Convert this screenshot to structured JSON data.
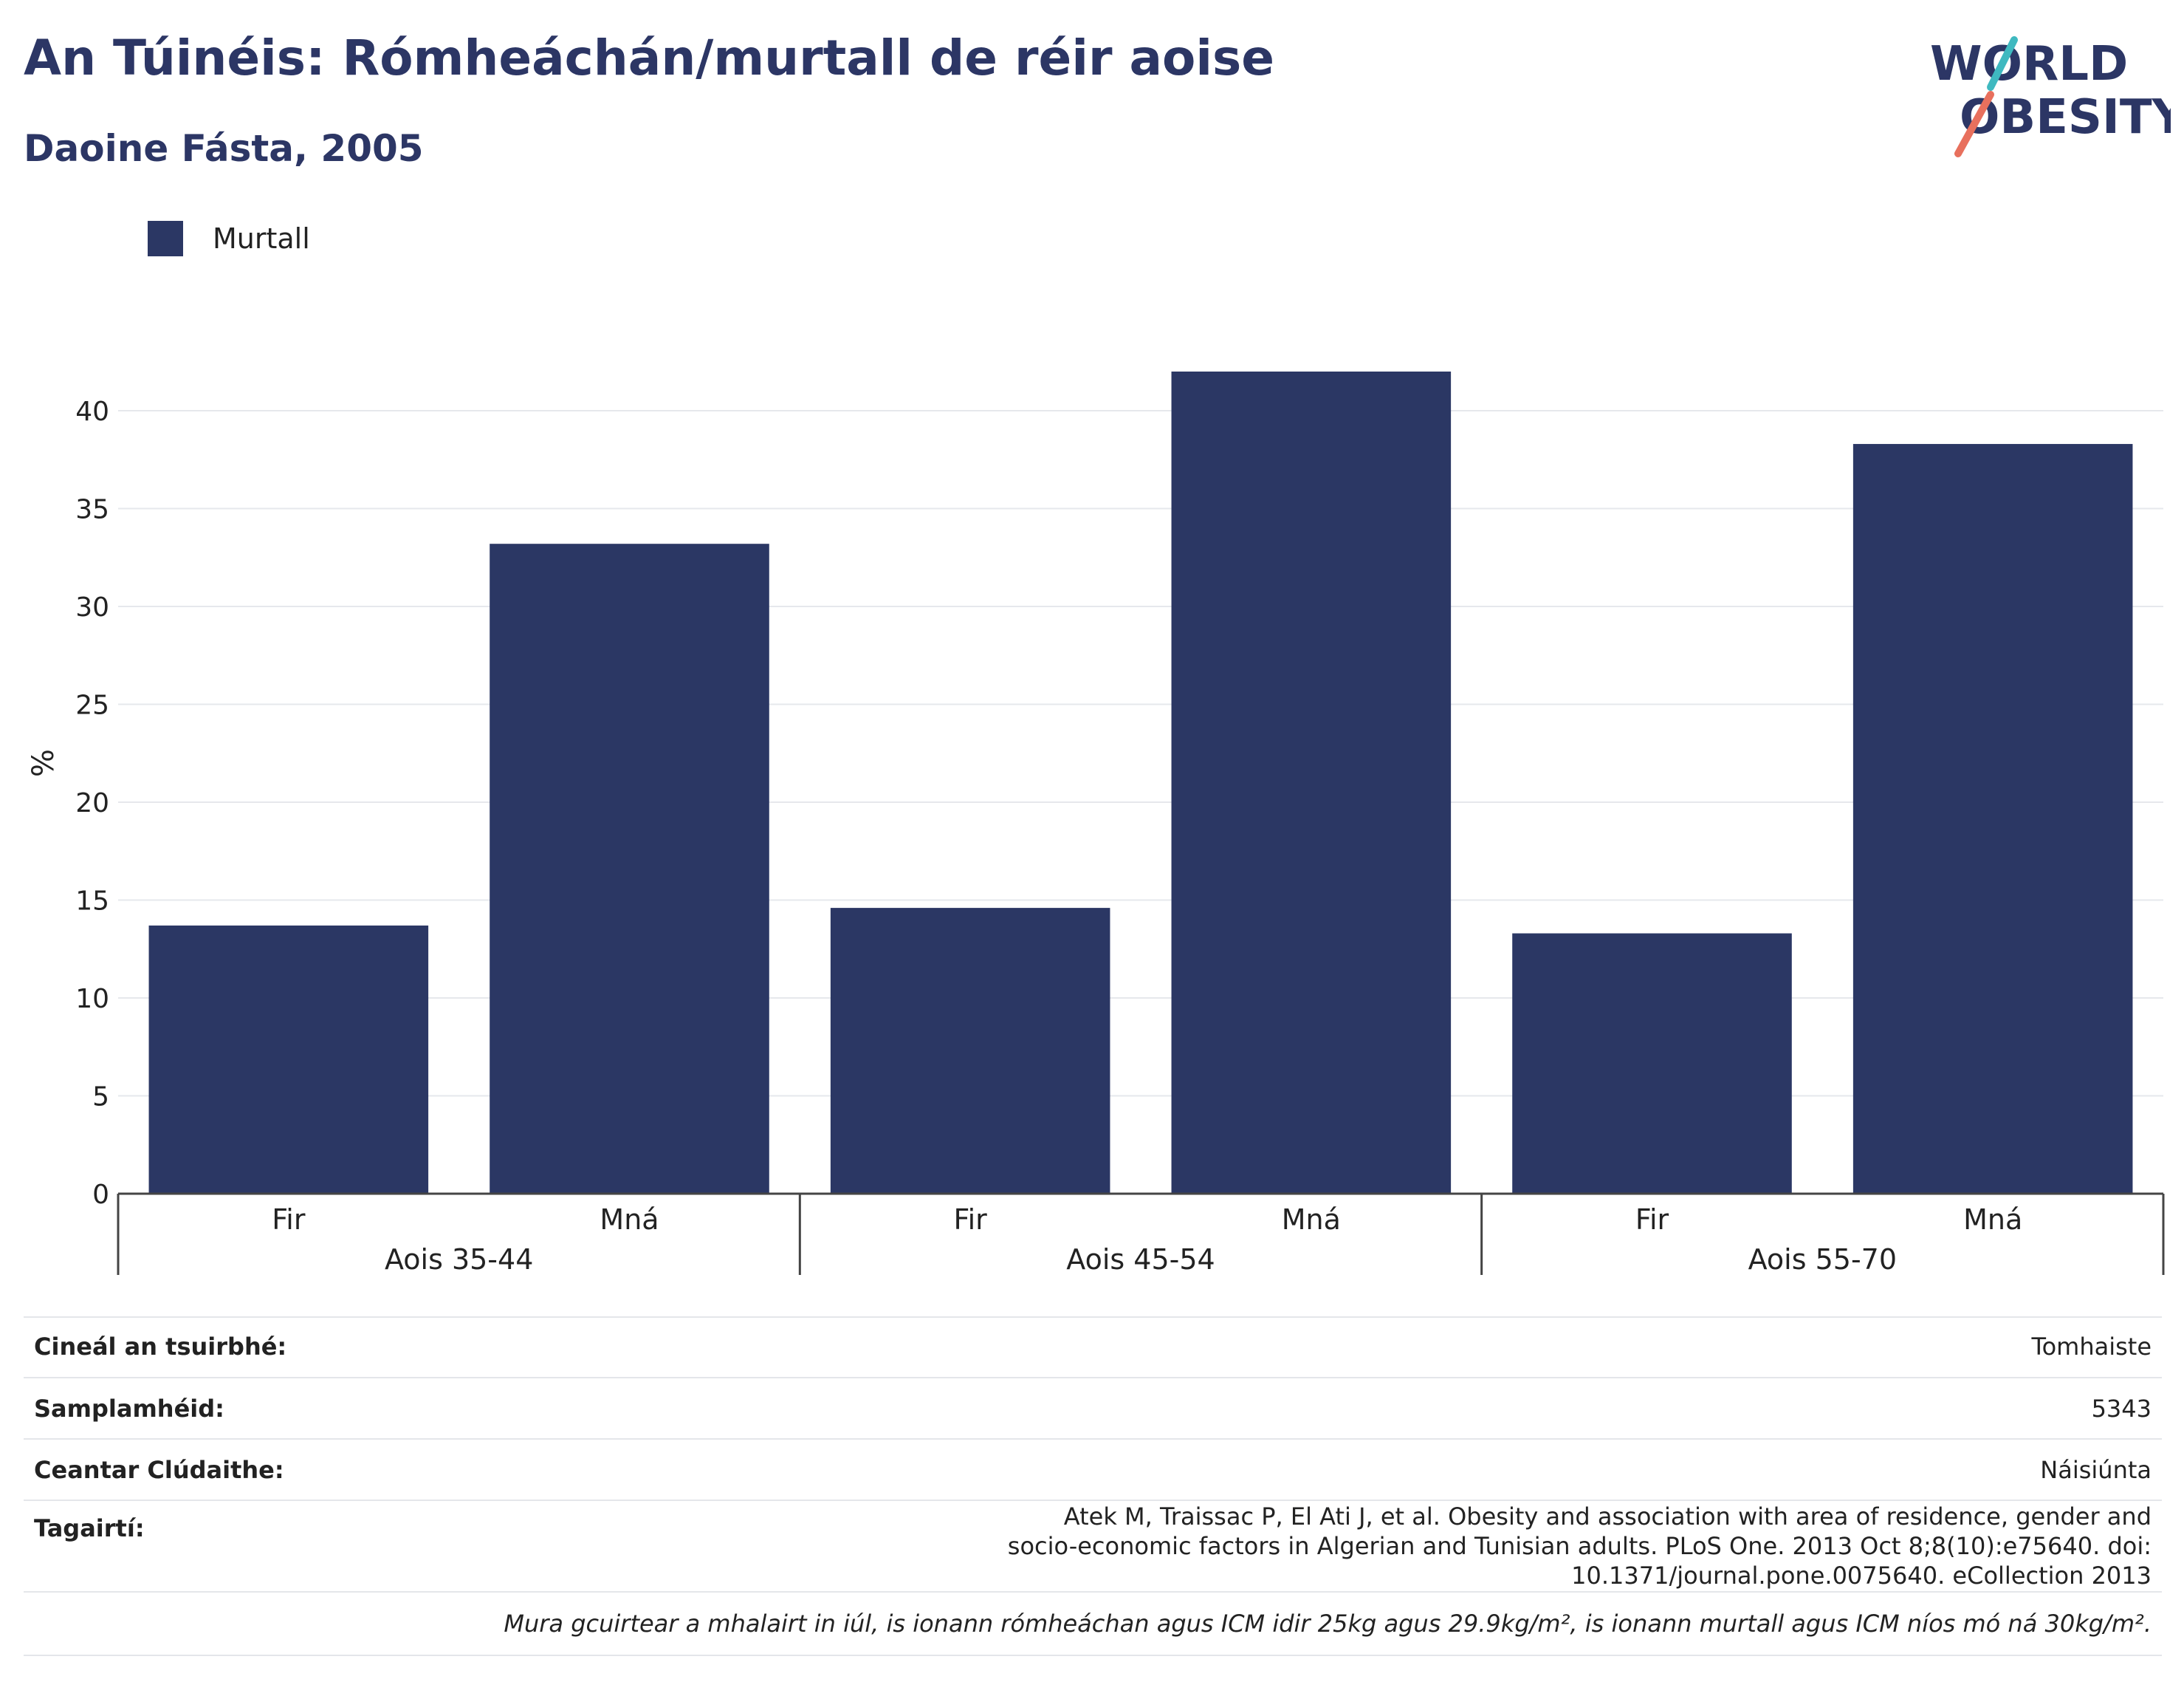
{
  "header": {
    "title": "An Túinéis: Rómheáchán/murtall de réir aoise",
    "subtitle": "Daoine Fásta, 2005"
  },
  "logo": {
    "line1": "WORLD",
    "line2": "OBESITY",
    "text_color": "#2c3665",
    "accent_teal": "#3fb9c0",
    "accent_coral": "#e8705d"
  },
  "legend": {
    "label": "Murtall",
    "color": "#2b3764"
  },
  "chart_data": {
    "type": "bar",
    "ylabel": "%",
    "ylim": [
      0,
      44
    ],
    "yticks": [
      0,
      5,
      10,
      15,
      20,
      25,
      30,
      35,
      40
    ],
    "grid": true,
    "legend_position": "top-left",
    "groups": [
      "Aois 35-44",
      "Aois 45-54",
      "Aois 55-70"
    ],
    "subcategories": [
      "Fir",
      "Mná"
    ],
    "series": [
      {
        "name": "Murtall",
        "color": "#2b3764",
        "values": [
          [
            13.7,
            33.2
          ],
          [
            14.6,
            42.0
          ],
          [
            13.3,
            38.3
          ]
        ]
      }
    ]
  },
  "info": {
    "rows": [
      {
        "key": "Cineál an tsuirbhé:",
        "value": "Tomhaiste"
      },
      {
        "key": "Samplamhéid:",
        "value": "5343"
      },
      {
        "key": "Ceantar Clúdaithe:",
        "value": "Náisiúnta"
      },
      {
        "key": "Tagairtí:",
        "value": "Atek M, Traissac P, El Ati J, et al. Obesity and association with area of residence, gender and socio-economic factors in Algerian and Tunisian adults. PLoS One. 2013 Oct 8;8(10):e75640. doi: 10.1371/journal.pone.0075640. eCollection 2013"
      }
    ],
    "note": "Mura gcuirtear a mhalairt in iúl, is ionann rómheáchan agus ICM idir 25kg agus 29.9kg/m², is ionann murtall agus ICM níos mó ná 30kg/m²."
  }
}
